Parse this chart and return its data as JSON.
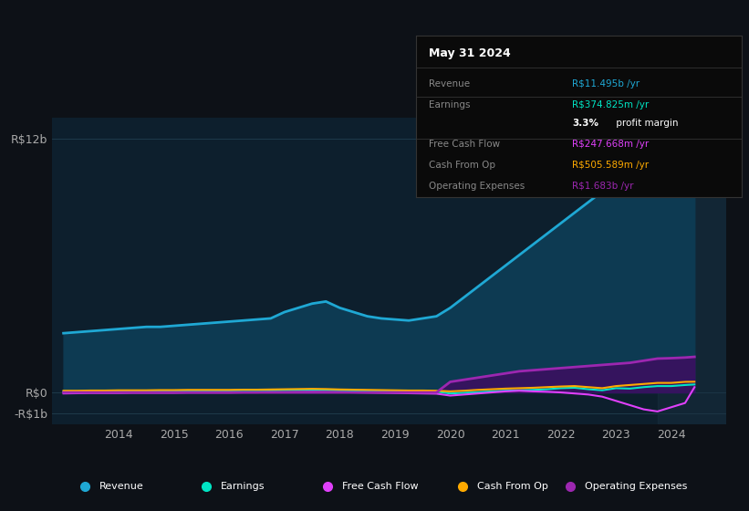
{
  "bg_color": "#0d1117",
  "plot_bg_color": "#0d1f2d",
  "grid_color": "#1e3a4a",
  "text_color": "#aaaaaa",
  "revenue_color": "#1fa8d4",
  "revenue_fill": "#0d3a52",
  "earnings_color": "#00e5c4",
  "fcf_color": "#e040fb",
  "cashfromop_color": "#ffaa00",
  "opex_color": "#9c27b0",
  "opex_fill": "#3a1060",
  "ytick_labels": [
    "R$12b",
    "R$0",
    "-R$1b"
  ],
  "ytick_values": [
    12000000000,
    0,
    -1000000000
  ],
  "xtick_labels": [
    "2014",
    "2015",
    "2016",
    "2017",
    "2018",
    "2019",
    "2020",
    "2021",
    "2022",
    "2023",
    "2024"
  ],
  "xtick_positions": [
    2014,
    2015,
    2016,
    2017,
    2018,
    2019,
    2020,
    2021,
    2022,
    2023,
    2024
  ],
  "ylim": [
    -1500000000,
    13000000000
  ],
  "xlim_start": 2012.8,
  "xlim_end": 2025.0,
  "tooltip_title": "May 31 2024",
  "tooltip_bg": "#0a0a0a",
  "tooltip_border": "#333333",
  "legend": [
    {
      "label": "Revenue",
      "color": "#1fa8d4"
    },
    {
      "label": "Earnings",
      "color": "#00e5c4"
    },
    {
      "label": "Free Cash Flow",
      "color": "#e040fb"
    },
    {
      "label": "Cash From Op",
      "color": "#ffaa00"
    },
    {
      "label": "Operating Expenses",
      "color": "#9c27b0"
    }
  ],
  "years": [
    2013.0,
    2013.25,
    2013.5,
    2013.75,
    2014.0,
    2014.25,
    2014.5,
    2014.75,
    2015.0,
    2015.25,
    2015.5,
    2015.75,
    2016.0,
    2016.25,
    2016.5,
    2016.75,
    2017.0,
    2017.25,
    2017.5,
    2017.75,
    2018.0,
    2018.25,
    2018.5,
    2018.75,
    2019.0,
    2019.25,
    2019.5,
    2019.75,
    2020.0,
    2020.25,
    2020.5,
    2020.75,
    2021.0,
    2021.25,
    2021.5,
    2021.75,
    2022.0,
    2022.25,
    2022.5,
    2022.75,
    2023.0,
    2023.25,
    2023.5,
    2023.75,
    2024.0,
    2024.25,
    2024.42
  ],
  "revenue": [
    2800000000,
    2850000000,
    2900000000,
    2950000000,
    3000000000,
    3050000000,
    3100000000,
    3100000000,
    3150000000,
    3200000000,
    3250000000,
    3300000000,
    3350000000,
    3400000000,
    3450000000,
    3500000000,
    3800000000,
    4000000000,
    4200000000,
    4300000000,
    4000000000,
    3800000000,
    3600000000,
    3500000000,
    3450000000,
    3400000000,
    3500000000,
    3600000000,
    4000000000,
    4500000000,
    5000000000,
    5500000000,
    6000000000,
    6500000000,
    7000000000,
    7500000000,
    8000000000,
    8500000000,
    9000000000,
    9500000000,
    9800000000,
    10000000000,
    10300000000,
    10600000000,
    11000000000,
    11300000000,
    11495000000
  ],
  "earnings": [
    50000000,
    40000000,
    50000000,
    60000000,
    60000000,
    70000000,
    80000000,
    80000000,
    80000000,
    80000000,
    90000000,
    90000000,
    90000000,
    100000000,
    100000000,
    100000000,
    110000000,
    120000000,
    130000000,
    120000000,
    100000000,
    90000000,
    80000000,
    70000000,
    60000000,
    50000000,
    50000000,
    40000000,
    -50000000,
    -20000000,
    10000000,
    50000000,
    80000000,
    100000000,
    120000000,
    150000000,
    200000000,
    220000000,
    150000000,
    100000000,
    200000000,
    180000000,
    250000000,
    300000000,
    300000000,
    350000000,
    374800000
  ],
  "fcf": [
    -50000000,
    -40000000,
    -30000000,
    -30000000,
    -30000000,
    -20000000,
    -20000000,
    -20000000,
    -20000000,
    -10000000,
    -10000000,
    -10000000,
    -10000000,
    0,
    0,
    10000000,
    10000000,
    20000000,
    30000000,
    20000000,
    10000000,
    0,
    -10000000,
    -20000000,
    -30000000,
    -40000000,
    -50000000,
    -60000000,
    -150000000,
    -100000000,
    -50000000,
    0,
    50000000,
    80000000,
    50000000,
    30000000,
    0,
    -50000000,
    -100000000,
    -200000000,
    -400000000,
    -600000000,
    -800000000,
    -900000000,
    -700000000,
    -500000000,
    247668000
  ],
  "cashfromop": [
    80000000,
    80000000,
    90000000,
    90000000,
    100000000,
    100000000,
    100000000,
    110000000,
    110000000,
    120000000,
    120000000,
    120000000,
    120000000,
    130000000,
    130000000,
    140000000,
    150000000,
    160000000,
    170000000,
    160000000,
    140000000,
    130000000,
    120000000,
    110000000,
    100000000,
    90000000,
    90000000,
    80000000,
    50000000,
    80000000,
    120000000,
    150000000,
    180000000,
    200000000,
    220000000,
    250000000,
    280000000,
    300000000,
    250000000,
    200000000,
    300000000,
    350000000,
    400000000,
    450000000,
    450000000,
    500000000,
    505589000
  ],
  "opex": [
    0,
    0,
    0,
    0,
    0,
    0,
    0,
    0,
    0,
    0,
    0,
    0,
    0,
    0,
    0,
    0,
    0,
    0,
    0,
    0,
    0,
    0,
    0,
    0,
    0,
    0,
    0,
    0,
    500000000,
    600000000,
    700000000,
    800000000,
    900000000,
    1000000000,
    1050000000,
    1100000000,
    1150000000,
    1200000000,
    1250000000,
    1300000000,
    1350000000,
    1400000000,
    1500000000,
    1600000000,
    1620000000,
    1650000000,
    1683000000
  ]
}
